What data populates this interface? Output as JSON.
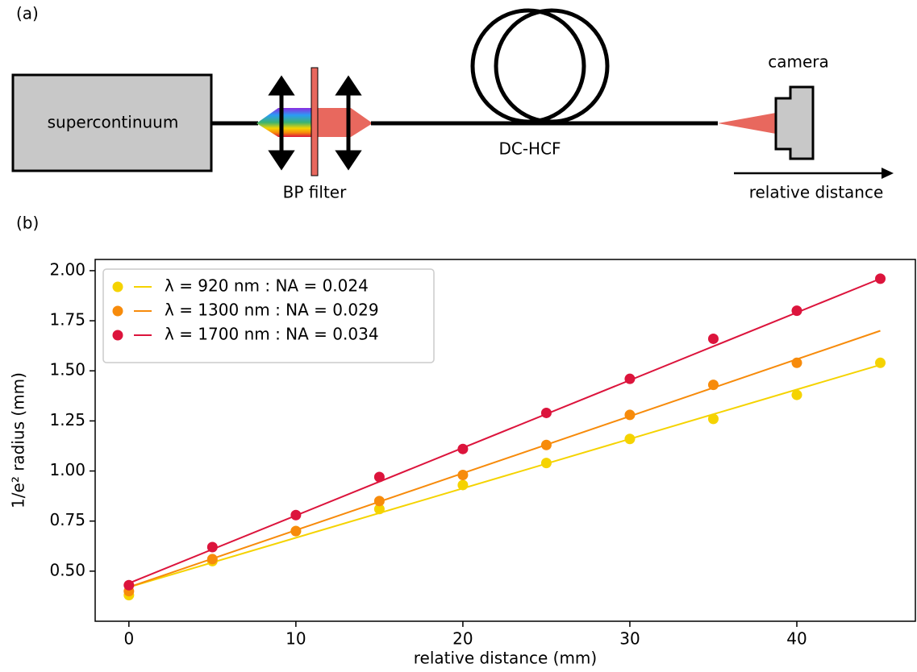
{
  "diagram": {
    "panel_label": "(a)",
    "source": "supercontinuum",
    "filter": "BP filter",
    "fiber": "DC-HCF",
    "detector": "camera",
    "axis": "relative distance"
  },
  "chart_data": {
    "type": "scatter",
    "panel_label": "(b)",
    "x_label": "relative distance (mm)",
    "y_label": "1/e² radius (mm)",
    "x": [
      0,
      5,
      10,
      15,
      20,
      25,
      30,
      35,
      40,
      45
    ],
    "fit_x": [
      0,
      45
    ],
    "series": [
      {
        "name": "λ = 920 nm : NA = 0.024",
        "color": "#f5d300",
        "values": [
          0.38,
          0.55,
          0.7,
          0.81,
          0.93,
          1.04,
          1.16,
          1.26,
          1.38,
          1.54
        ],
        "fit_values": [
          0.42,
          1.53
        ]
      },
      {
        "name": "λ = 1300 nm : NA = 0.029",
        "color": "#f78b0b",
        "values": [
          0.4,
          0.56,
          0.7,
          0.85,
          0.98,
          1.13,
          1.28,
          1.43,
          1.54,
          null
        ],
        "fit_values": [
          0.42,
          1.7
        ]
      },
      {
        "name": "λ = 1700 nm : NA = 0.034",
        "color": "#dc143c",
        "values": [
          0.43,
          0.62,
          0.78,
          0.97,
          1.11,
          1.29,
          1.46,
          1.66,
          1.8,
          1.96
        ],
        "fit_values": [
          0.44,
          1.96
        ]
      }
    ],
    "xlim": [
      -2.02,
      47.1
    ],
    "ylim": [
      0.25,
      2.056
    ],
    "xticks": [
      0,
      10,
      20,
      30,
      40
    ],
    "yticks": [
      {
        "value": 0.5,
        "label": "0.50"
      },
      {
        "value": 0.75,
        "label": "0.75"
      },
      {
        "value": 1.0,
        "label": "1.00"
      },
      {
        "value": 1.25,
        "label": "1.25"
      },
      {
        "value": 1.5,
        "label": "1.50"
      },
      {
        "value": 1.75,
        "label": "1.75"
      },
      {
        "value": 2.0,
        "label": "2.00"
      }
    ],
    "legend": "upper left",
    "grid": false
  }
}
